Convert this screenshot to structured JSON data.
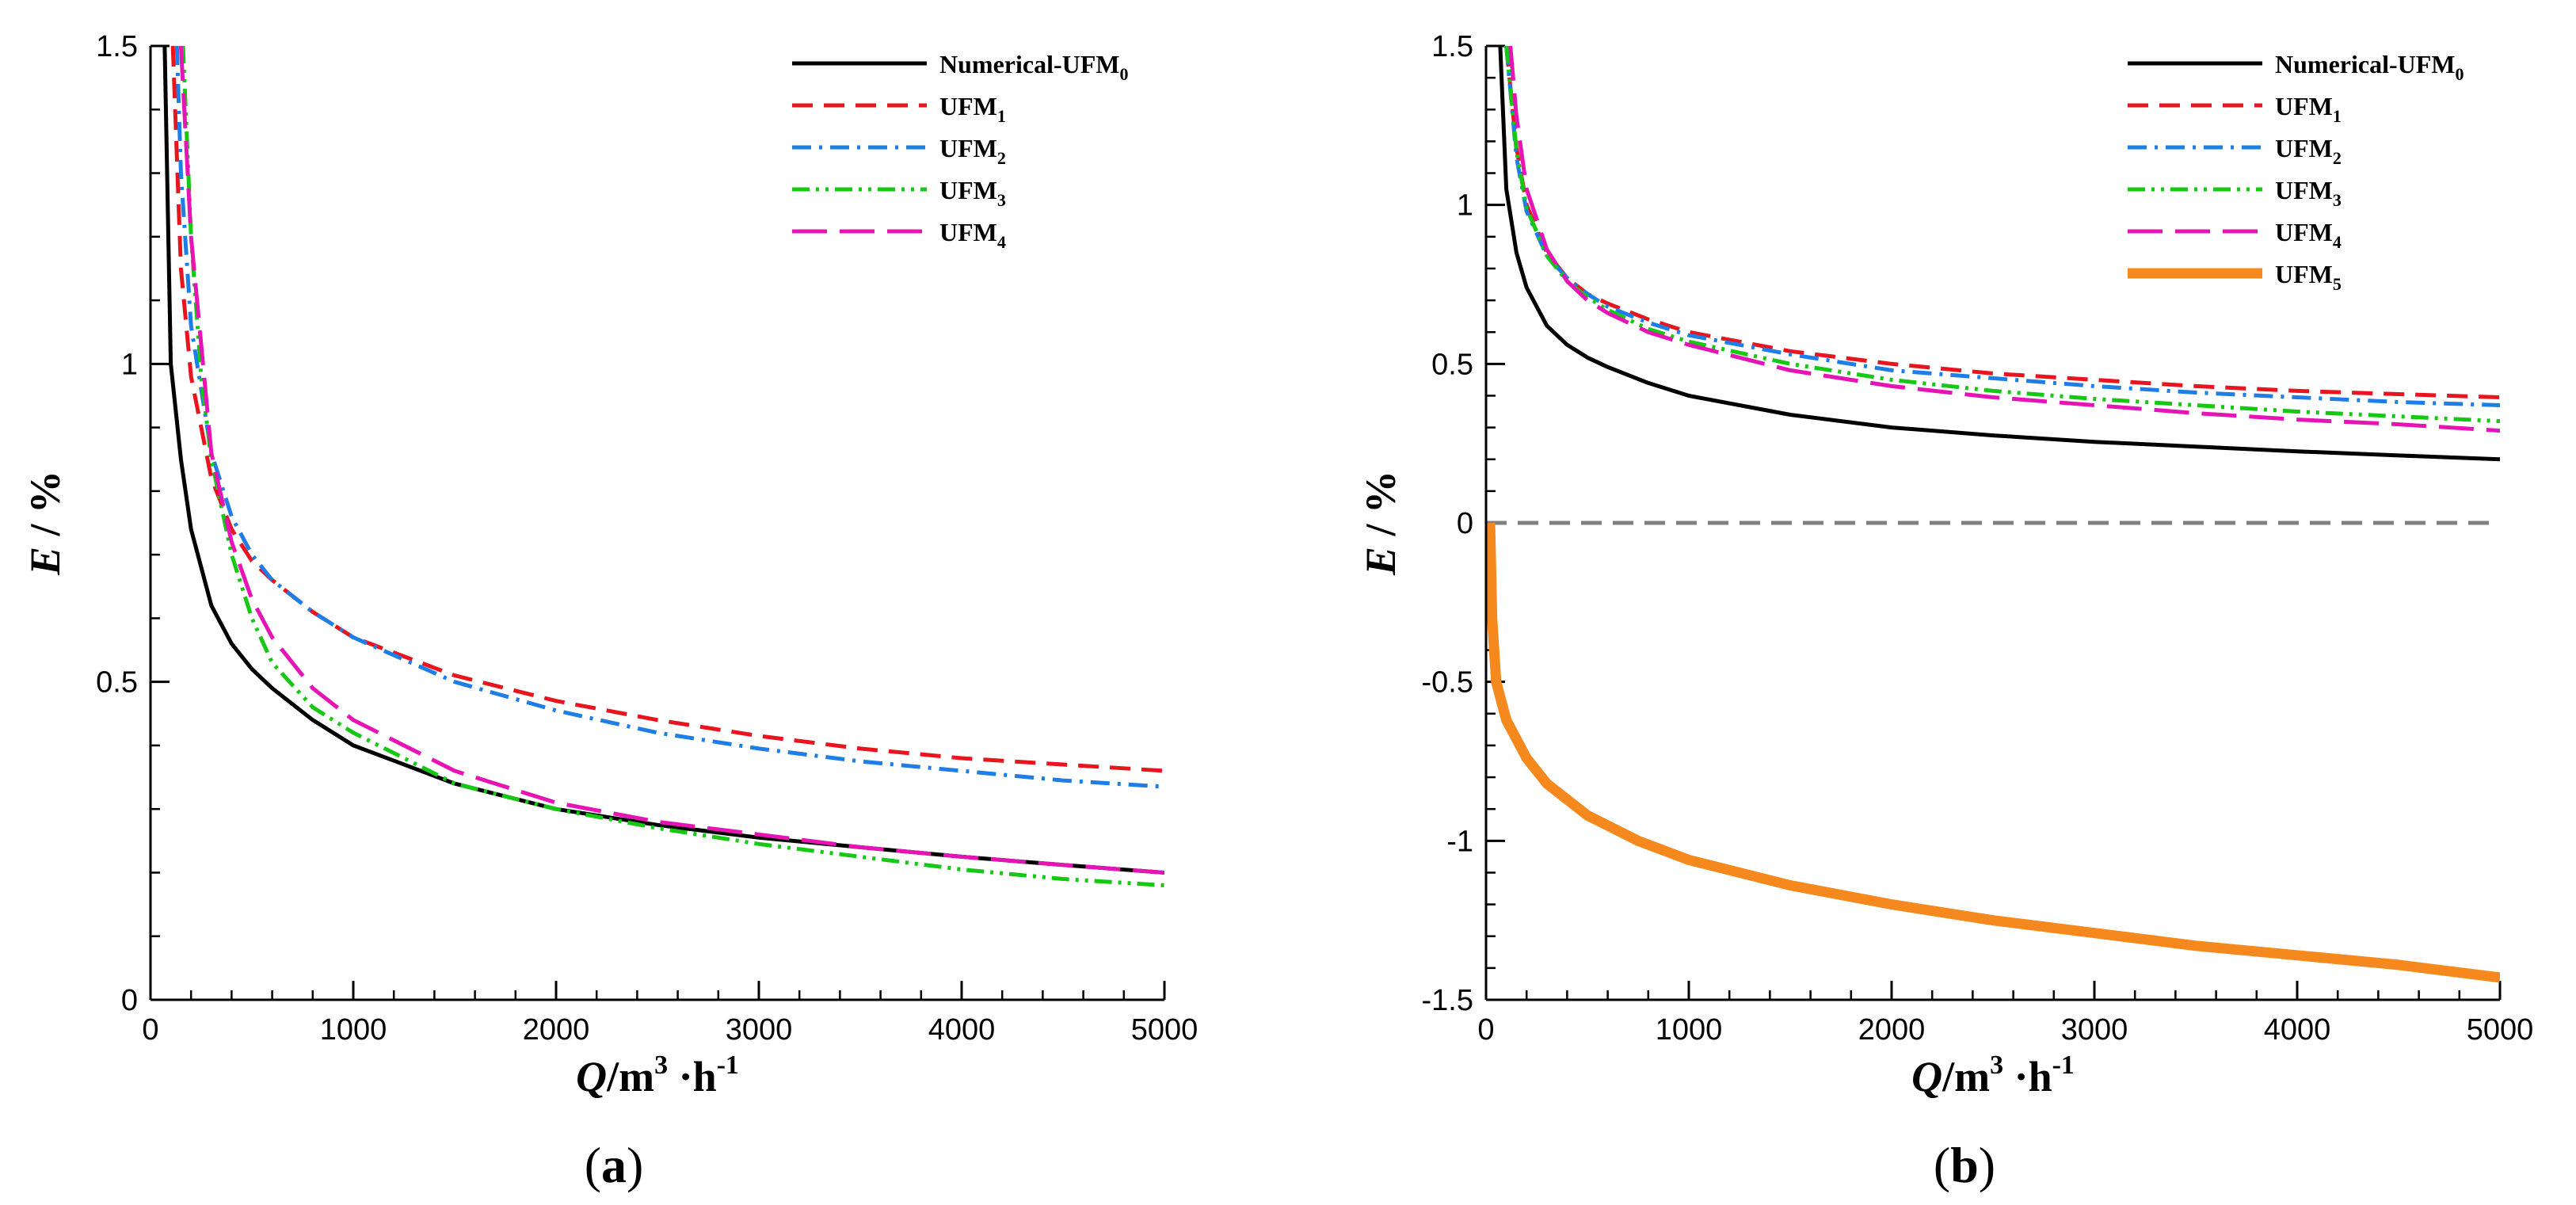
{
  "chart_data": [
    {
      "type": "line",
      "panel": "a",
      "caption_open": "(",
      "caption_letter": "a",
      "caption_close": ")",
      "ylabel": {
        "main": "E",
        "rest": " / %"
      },
      "xlabel": {
        "main": "Q",
        "unit": "/m",
        "exp1": "3",
        "dot": " ·h",
        "exp2": "-1"
      },
      "xlim": [
        0,
        5000
      ],
      "ylim": [
        0,
        1.5
      ],
      "xticks": [
        0,
        1000,
        2000,
        3000,
        4000,
        5000
      ],
      "xtick_labels": [
        "0",
        "1000",
        "2000",
        "3000",
        "4000",
        "5000"
      ],
      "yticks": [
        0,
        0.5,
        1,
        1.5
      ],
      "ytick_labels": [
        "0",
        "0.5",
        "1",
        "1.5"
      ],
      "legend_position": "top-right",
      "series": [
        {
          "name": "Numerical-UFM",
          "subscript": "0",
          "color": "#000000",
          "style": "solid",
          "x": [
            70,
            100,
            150,
            200,
            300,
            400,
            500,
            600,
            800,
            1000,
            1500,
            2000,
            2500,
            3000,
            3500,
            4000,
            4500,
            5000
          ],
          "y": [
            1.5,
            1.0,
            0.85,
            0.74,
            0.62,
            0.56,
            0.52,
            0.49,
            0.44,
            0.4,
            0.34,
            0.3,
            0.275,
            0.255,
            0.24,
            0.225,
            0.212,
            0.2
          ]
        },
        {
          "name": "UFM",
          "subscript": "1",
          "color": "#e8141e",
          "style": "dash",
          "x": [
            110,
            150,
            200,
            300,
            400,
            500,
            600,
            800,
            1000,
            1500,
            2000,
            2500,
            3000,
            3500,
            4000,
            4500,
            5000
          ],
          "y": [
            1.5,
            1.15,
            0.98,
            0.82,
            0.74,
            0.69,
            0.66,
            0.61,
            0.57,
            0.51,
            0.47,
            0.44,
            0.415,
            0.395,
            0.38,
            0.37,
            0.36
          ]
        },
        {
          "name": "UFM",
          "subscript": "2",
          "color": "#1e7ee6",
          "style": "dashdot",
          "x": [
            130,
            150,
            200,
            300,
            400,
            500,
            600,
            800,
            1000,
            1500,
            2000,
            2500,
            3000,
            3500,
            4000,
            4500,
            5000
          ],
          "y": [
            1.5,
            1.3,
            1.06,
            0.86,
            0.76,
            0.7,
            0.66,
            0.61,
            0.57,
            0.5,
            0.455,
            0.42,
            0.395,
            0.375,
            0.36,
            0.345,
            0.335
          ]
        },
        {
          "name": "UFM",
          "subscript": "3",
          "color": "#14c814",
          "style": "dashdotdot",
          "x": [
            160,
            200,
            250,
            300,
            400,
            500,
            600,
            800,
            1000,
            1500,
            2000,
            2500,
            3000,
            3500,
            4000,
            4500,
            5000
          ],
          "y": [
            1.5,
            1.2,
            0.98,
            0.85,
            0.7,
            0.6,
            0.53,
            0.46,
            0.42,
            0.34,
            0.3,
            0.27,
            0.245,
            0.225,
            0.205,
            0.19,
            0.18
          ]
        },
        {
          "name": "UFM",
          "subscript": "4",
          "color": "#e614b4",
          "style": "longdash",
          "x": [
            150,
            200,
            300,
            400,
            500,
            600,
            800,
            1000,
            1500,
            2000,
            2500,
            3000,
            3500,
            4000,
            4500,
            5000
          ],
          "y": [
            1.5,
            1.2,
            0.86,
            0.72,
            0.63,
            0.57,
            0.49,
            0.44,
            0.36,
            0.31,
            0.28,
            0.26,
            0.24,
            0.225,
            0.212,
            0.2
          ]
        }
      ]
    },
    {
      "type": "line",
      "panel": "b",
      "caption_open": "(",
      "caption_letter": "b",
      "caption_close": ")",
      "ylabel": {
        "main": "E",
        "rest": " / %"
      },
      "xlabel": {
        "main": "Q",
        "unit": "/m",
        "exp1": "3",
        "dot": " ·h",
        "exp2": "-1"
      },
      "xlim": [
        0,
        5000
      ],
      "ylim": [
        -1.5,
        1.5
      ],
      "xticks": [
        0,
        1000,
        2000,
        3000,
        4000,
        5000
      ],
      "xtick_labels": [
        "0",
        "1000",
        "2000",
        "3000",
        "4000",
        "5000"
      ],
      "yticks": [
        -1.5,
        -1,
        -0.5,
        0,
        0.5,
        1,
        1.5
      ],
      "ytick_labels": [
        "-1.5",
        "-1",
        "-0.5",
        "0",
        "0.5",
        "1",
        "1.5"
      ],
      "reference_line": {
        "y": 0,
        "color": "#808080",
        "style": "dash"
      },
      "legend_position": "top-right",
      "series": [
        {
          "name": "Numerical-UFM",
          "subscript": "0",
          "color": "#000000",
          "style": "solid",
          "x": [
            70,
            100,
            150,
            200,
            300,
            400,
            500,
            600,
            800,
            1000,
            1500,
            2000,
            2500,
            3000,
            3500,
            4000,
            4500,
            5000
          ],
          "y": [
            1.5,
            1.05,
            0.85,
            0.74,
            0.62,
            0.56,
            0.52,
            0.49,
            0.44,
            0.4,
            0.34,
            0.3,
            0.275,
            0.255,
            0.24,
            0.225,
            0.212,
            0.2
          ]
        },
        {
          "name": "UFM",
          "subscript": "1",
          "color": "#e8141e",
          "style": "dash",
          "x": [
            100,
            150,
            200,
            300,
            400,
            500,
            600,
            800,
            1000,
            1500,
            2000,
            2500,
            3000,
            3500,
            4000,
            4500,
            5000
          ],
          "y": [
            1.5,
            1.18,
            1.0,
            0.85,
            0.77,
            0.72,
            0.69,
            0.64,
            0.6,
            0.54,
            0.5,
            0.47,
            0.45,
            0.43,
            0.415,
            0.405,
            0.395
          ]
        },
        {
          "name": "UFM",
          "subscript": "2",
          "color": "#1e7ee6",
          "style": "dashdot",
          "x": [
            100,
            150,
            200,
            300,
            400,
            500,
            600,
            800,
            1000,
            1500,
            2000,
            2500,
            3000,
            3500,
            4000,
            4500,
            5000
          ],
          "y": [
            1.5,
            1.15,
            0.98,
            0.84,
            0.77,
            0.72,
            0.68,
            0.63,
            0.59,
            0.53,
            0.48,
            0.455,
            0.43,
            0.41,
            0.395,
            0.38,
            0.37
          ]
        },
        {
          "name": "UFM",
          "subscript": "3",
          "color": "#14c814",
          "style": "dashdotdot",
          "x": [
            100,
            150,
            200,
            300,
            400,
            500,
            600,
            800,
            1000,
            1500,
            2000,
            2500,
            3000,
            3500,
            4000,
            4500,
            5000
          ],
          "y": [
            1.5,
            1.17,
            0.99,
            0.84,
            0.76,
            0.71,
            0.67,
            0.61,
            0.57,
            0.5,
            0.45,
            0.415,
            0.39,
            0.37,
            0.35,
            0.335,
            0.32
          ]
        },
        {
          "name": "UFM",
          "subscript": "4",
          "color": "#e614b4",
          "style": "longdash",
          "x": [
            120,
            150,
            200,
            300,
            400,
            500,
            600,
            800,
            1000,
            1500,
            2000,
            2500,
            3000,
            3500,
            4000,
            4500,
            5000
          ],
          "y": [
            1.5,
            1.28,
            1.05,
            0.86,
            0.76,
            0.7,
            0.66,
            0.6,
            0.56,
            0.48,
            0.43,
            0.395,
            0.37,
            0.345,
            0.325,
            0.31,
            0.29
          ]
        },
        {
          "name": "UFM",
          "subscript": "5",
          "color": "#f5891e",
          "style": "thick",
          "x": [
            20,
            30,
            50,
            100,
            200,
            300,
            500,
            750,
            1000,
            1500,
            2000,
            2500,
            3000,
            3500,
            4000,
            4500,
            5000
          ],
          "y": [
            0,
            -0.3,
            -0.5,
            -0.62,
            -0.74,
            -0.82,
            -0.92,
            -1.0,
            -1.06,
            -1.14,
            -1.2,
            -1.25,
            -1.29,
            -1.33,
            -1.36,
            -1.39,
            -1.43
          ]
        }
      ]
    }
  ]
}
